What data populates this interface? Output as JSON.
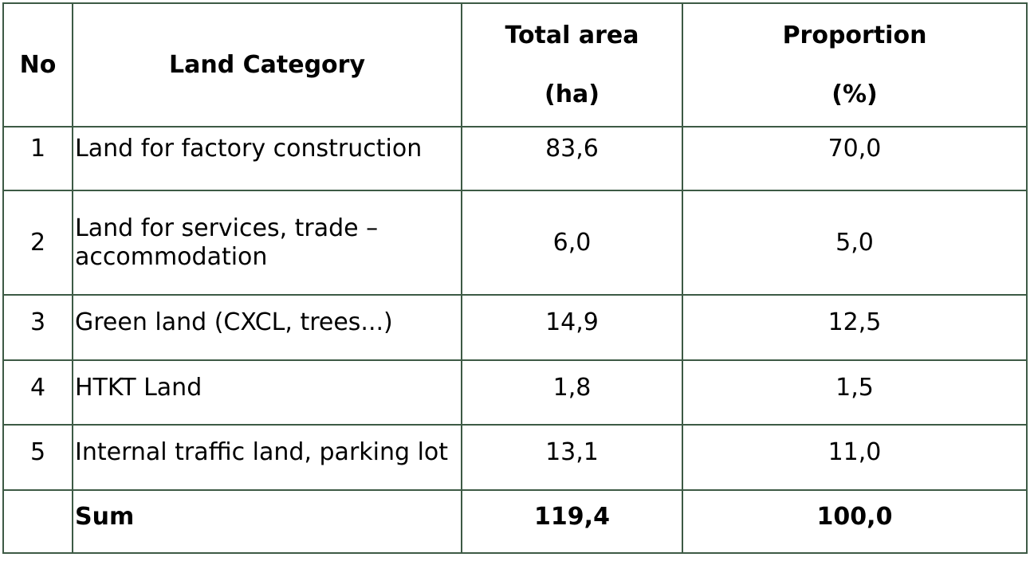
{
  "table": {
    "headers": {
      "no": "No",
      "category": "Land Category",
      "area_line1": "Total area",
      "area_line2": "(ha)",
      "proportion_line1": "Proportion",
      "proportion_line2": "(%)"
    },
    "rows": [
      {
        "no": "1",
        "category": "Land for factory construction",
        "area": "83,6",
        "proportion": "70,0"
      },
      {
        "no": "2",
        "category_line1": "Land for services, trade –",
        "category_line2": "accommodation",
        "area": "6,0",
        "proportion": "5,0"
      },
      {
        "no": "3",
        "category": "Green land (CXCL, trees...)",
        "area": "14,9",
        "proportion": "12,5"
      },
      {
        "no": "4",
        "category": "HTKT Land",
        "area": "1,8",
        "proportion": "1,5"
      },
      {
        "no": "5",
        "category": "Internal traffic land, parking lot",
        "area": "13,1",
        "proportion": "11,0"
      }
    ],
    "sum": {
      "label": "Sum",
      "area": "119,4",
      "proportion": "100,0"
    }
  }
}
